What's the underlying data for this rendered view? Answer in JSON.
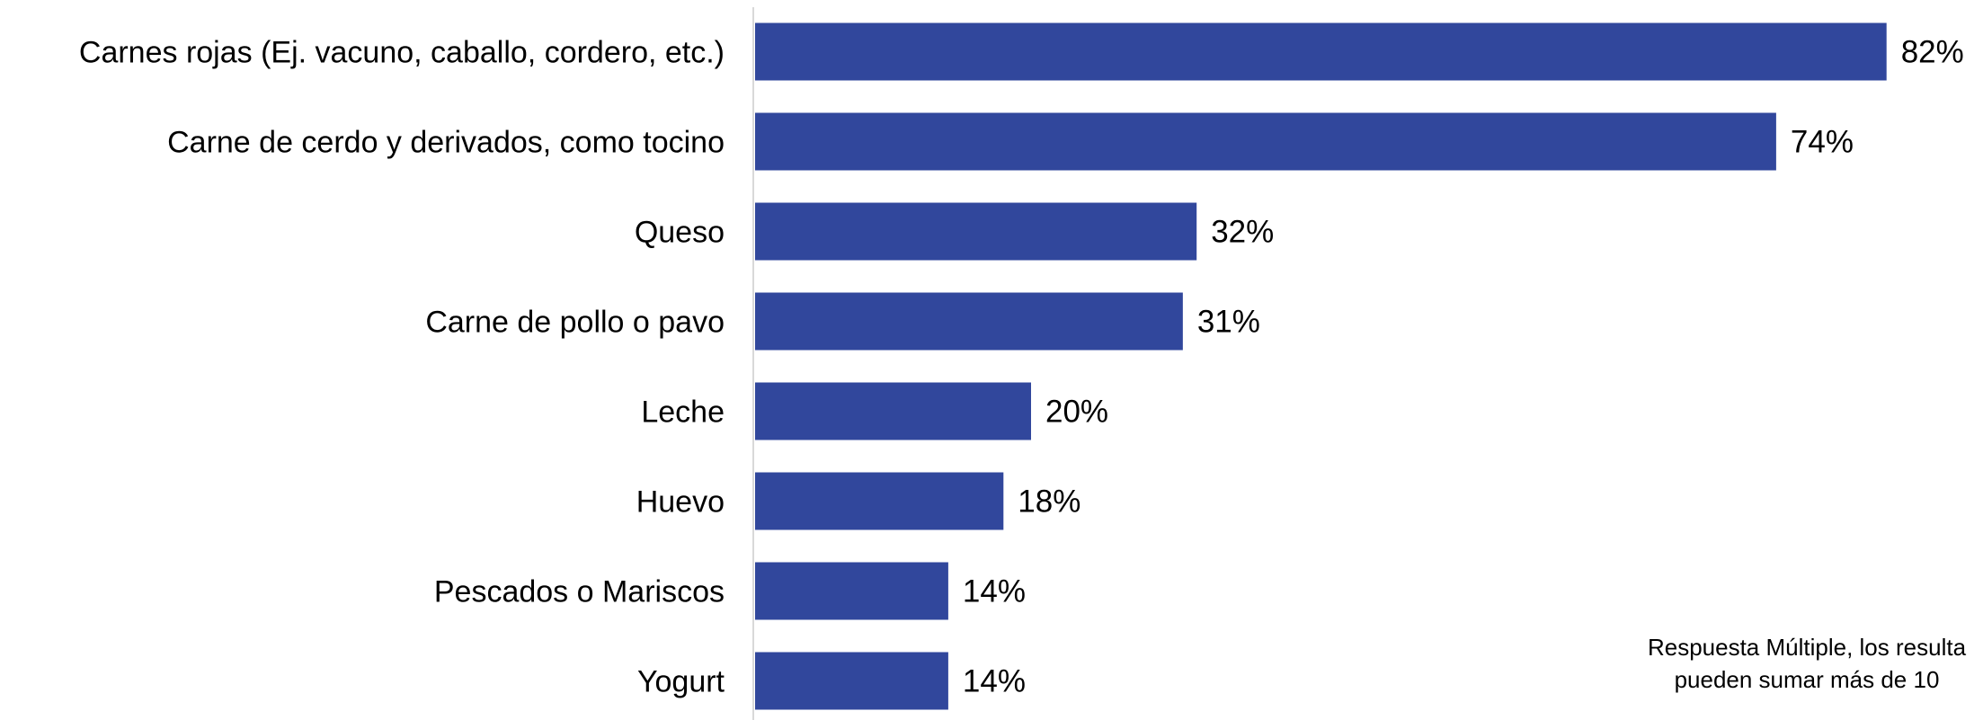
{
  "chart_data": {
    "type": "bar",
    "orientation": "horizontal",
    "categories": [
      "Carnes rojas (Ej. vacuno, caballo, cordero, etc.)",
      "Carne de cerdo y derivados, como tocino",
      "Queso",
      "Carne de pollo o pavo",
      "Leche",
      "Huevo",
      "Pescados o Mariscos",
      "Yogurt"
    ],
    "values": [
      82,
      74,
      32,
      31,
      20,
      18,
      14,
      14
    ],
    "value_labels": [
      "82%",
      "74%",
      "32%",
      "31%",
      "20%",
      "18%",
      "14%",
      "14%"
    ],
    "unit": "%",
    "bar_color": "#31479C",
    "xlim": [
      0,
      100
    ],
    "grid": false,
    "legend": "none",
    "title": "",
    "xlabel": "",
    "ylabel": ""
  },
  "note": {
    "line1": "Respuesta Múltiple, los resulta",
    "line2": "pueden sumar más de 10"
  }
}
